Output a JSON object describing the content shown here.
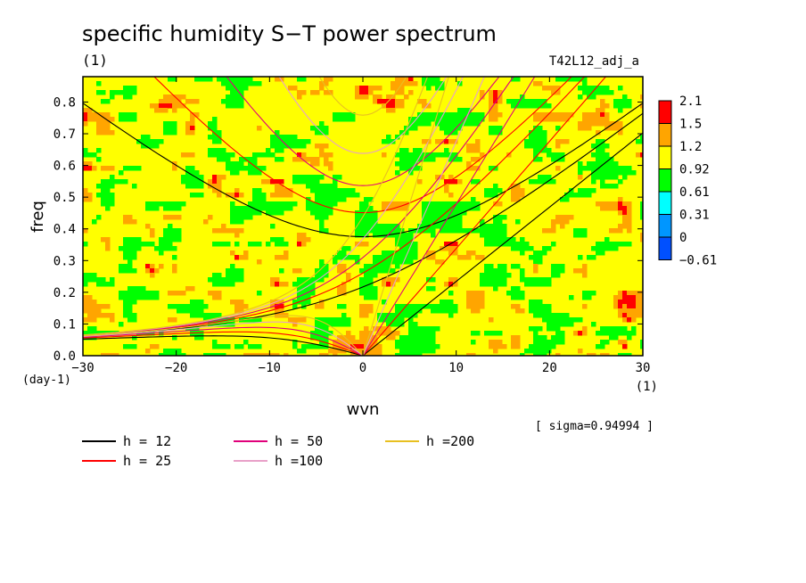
{
  "chart_data": {
    "type": "heatmap",
    "title": "specific humidity S−T power spectrum",
    "units_label": "(1)",
    "experiment_label": "T42L12_adj_a",
    "xlabel": "wvn",
    "ylabel": "freq",
    "x_unit": "(1)",
    "y_unit": "(day-1)",
    "xlim": [
      -30,
      30
    ],
    "ylim": [
      0,
      0.88
    ],
    "x_ticks": [
      "−30",
      "−20",
      "−10",
      "0",
      "10",
      "20",
      "30"
    ],
    "x_tick_values": [
      -30,
      -20,
      -10,
      0,
      10,
      20,
      30
    ],
    "y_ticks": [
      "0.0",
      "0.1",
      "0.2",
      "0.3",
      "0.4",
      "0.5",
      "0.6",
      "0.7",
      "0.8"
    ],
    "y_tick_values": [
      0,
      0.1,
      0.2,
      0.3,
      0.4,
      0.5,
      0.6,
      0.7,
      0.8
    ],
    "sigma_label": "[ sigma=0.94994 ]",
    "colorbar": {
      "levels": [
        "2.1",
        "1.5",
        "1.2",
        "0.92",
        "0.61",
        "0.31",
        "0",
        "−0.61"
      ],
      "colors": [
        "#ff0000",
        "#ffa500",
        "#ffff00",
        "#00ff00",
        "#00ffff",
        "#0096ff",
        "#0050ff"
      ]
    },
    "field_colors": {
      "base": "#ffff00",
      "low": "#00ff00",
      "high": "#ffa500",
      "peak": "#ff0000"
    },
    "dispersion_curves": [
      {
        "label": "h = 12",
        "h": 12,
        "color": "#000000"
      },
      {
        "label": "h = 25",
        "h": 25,
        "color": "#ff0000"
      },
      {
        "label": "h = 50",
        "h": 50,
        "color": "#e0007a"
      },
      {
        "label": "h =100",
        "h": 100,
        "color": "#e8a0c8"
      },
      {
        "label": "h =200",
        "h": 200,
        "color": "#e8c020"
      }
    ]
  }
}
